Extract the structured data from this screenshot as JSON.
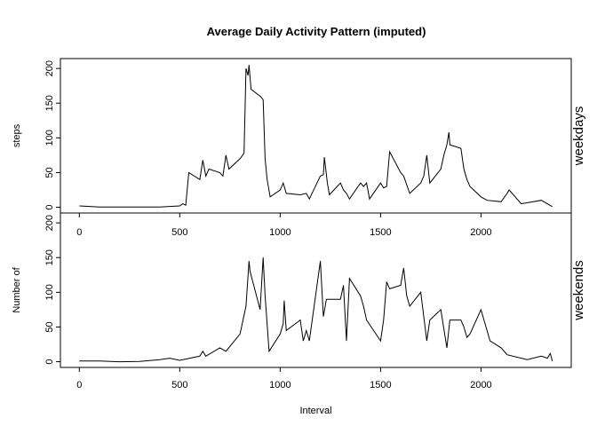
{
  "chart_data": [
    {
      "type": "line",
      "title": "Average Daily Activity Pattern (imputed)",
      "ylabel": "steps",
      "strip": "weekdays",
      "color": "#000000",
      "x": [
        0,
        100,
        200,
        300,
        400,
        500,
        515,
        530,
        545,
        600,
        615,
        630,
        645,
        700,
        715,
        730,
        745,
        800,
        820,
        830,
        840,
        845,
        855,
        900,
        915,
        925,
        935,
        950,
        1000,
        1015,
        1030,
        1100,
        1130,
        1145,
        1200,
        1215,
        1220,
        1235,
        1245,
        1300,
        1315,
        1330,
        1345,
        1400,
        1415,
        1430,
        1445,
        1500,
        1515,
        1530,
        1545,
        1600,
        1615,
        1645,
        1700,
        1715,
        1730,
        1745,
        1800,
        1815,
        1830,
        1840,
        1845,
        1900,
        1915,
        1930,
        1945,
        2000,
        2030,
        2100,
        2130,
        2140,
        2200,
        2300,
        2355
      ],
      "values": [
        2,
        0.5,
        0.3,
        0.5,
        0.3,
        2,
        5,
        3,
        50,
        40,
        68,
        45,
        55,
        50,
        45,
        75,
        55,
        70,
        78,
        200,
        190,
        205,
        170,
        160,
        155,
        70,
        40,
        15,
        25,
        35,
        20,
        18,
        20,
        12,
        45,
        47,
        72,
        35,
        18,
        35,
        25,
        20,
        12,
        35,
        30,
        35,
        12,
        35,
        28,
        30,
        80,
        50,
        45,
        20,
        35,
        45,
        75,
        35,
        55,
        75,
        90,
        108,
        90,
        85,
        55,
        40,
        30,
        15,
        10,
        8,
        20,
        25,
        5,
        10,
        1
      ],
      "xlim": [
        -94.2,
        2449.2
      ],
      "ylim": [
        -8.24,
        214.24
      ],
      "xticks": [
        0,
        500,
        1000,
        1500,
        2000
      ],
      "yticks": [
        0,
        50,
        100,
        150,
        200
      ]
    },
    {
      "type": "line",
      "ylabel": "Number of",
      "xlabel": "Interval",
      "strip": "weekends",
      "color": "#000000",
      "x": [
        0,
        100,
        200,
        300,
        400,
        450,
        500,
        550,
        600,
        615,
        630,
        700,
        730,
        800,
        830,
        845,
        850,
        900,
        915,
        925,
        945,
        1000,
        1015,
        1020,
        1030,
        1100,
        1115,
        1130,
        1145,
        1200,
        1215,
        1230,
        1300,
        1315,
        1330,
        1345,
        1400,
        1415,
        1430,
        1500,
        1515,
        1530,
        1545,
        1600,
        1615,
        1630,
        1645,
        1700,
        1730,
        1745,
        1800,
        1830,
        1845,
        1900,
        1915,
        1930,
        1945,
        2000,
        2015,
        2045,
        2100,
        2130,
        2200,
        2230,
        2300,
        2330,
        2345,
        2355
      ],
      "values": [
        1,
        1,
        0,
        0.5,
        3,
        5,
        2,
        5,
        8,
        15,
        8,
        20,
        15,
        40,
        80,
        145,
        130,
        75,
        150,
        95,
        15,
        40,
        55,
        88,
        45,
        60,
        30,
        45,
        30,
        145,
        65,
        90,
        90,
        110,
        30,
        120,
        95,
        80,
        60,
        30,
        60,
        115,
        105,
        110,
        135,
        95,
        80,
        100,
        30,
        60,
        75,
        20,
        60,
        60,
        50,
        35,
        40,
        75,
        60,
        30,
        20,
        10,
        5,
        3,
        8,
        5,
        12,
        1
      ],
      "xlim": [
        -94.2,
        2449.2
      ],
      "ylim": [
        -8.24,
        214.24
      ],
      "xticks": [
        0,
        500,
        1000,
        1500,
        2000
      ],
      "yticks": [
        0,
        50,
        100,
        150,
        200
      ]
    }
  ]
}
